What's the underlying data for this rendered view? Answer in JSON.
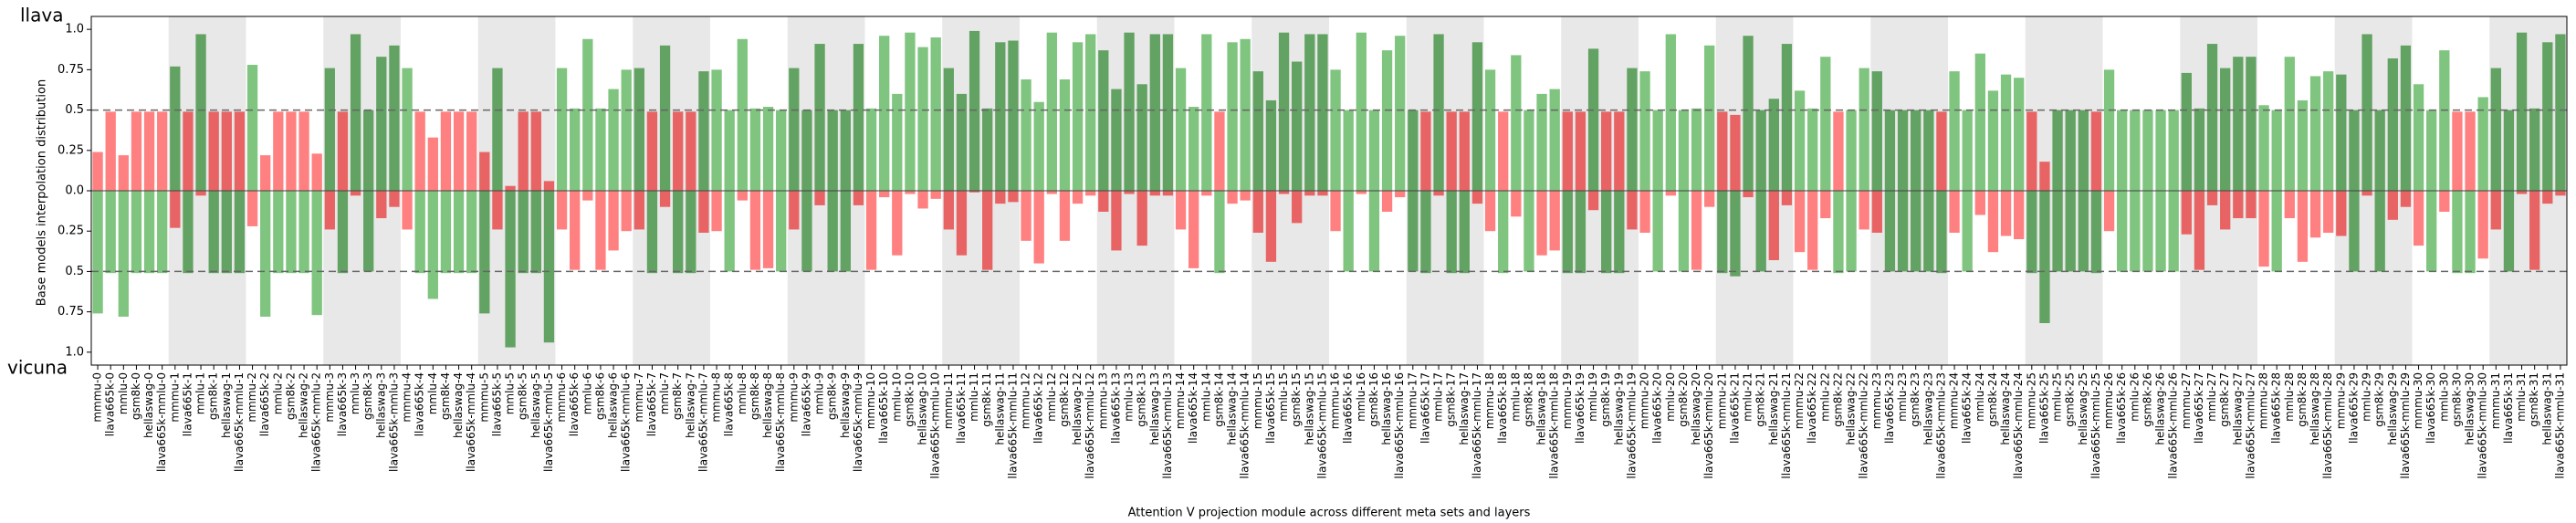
{
  "chart_data": {
    "type": "diverging_bar",
    "top_label": "llava",
    "bottom_label": "vicuna",
    "ylabel": "Base models interpolation distribution",
    "xlabel": "Attention V projection module across different meta sets and layers",
    "ylim": [
      -1.08,
      1.08
    ],
    "yticks": [
      {
        "value": 1,
        "label": "1.0"
      },
      0.75,
      0.5,
      0.25,
      {
        "value": 0,
        "label": "0.0"
      },
      {
        "value": -0.25,
        "label": "0.25"
      },
      {
        "value": -0.5,
        "label": "0.5"
      },
      {
        "value": -0.75,
        "label": "0.75"
      },
      {
        "value": -1,
        "label": "1.0"
      }
    ],
    "reference_lines": [
      0.5,
      -0.5
    ],
    "colors": {
      "high": "#7fc47f",
      "low": "#ff8080",
      "high_dark": "#62a262",
      "low_dark": "#e86464",
      "shade": "#e8e8e8"
    },
    "categories": [
      "mmmu-0",
      "llava665k-0",
      "mmlu-0",
      "gsm8k-0",
      "hellaswag-0",
      "llava665k-mmlu-0",
      "mmmu-1",
      "llava665k-1",
      "mmlu-1",
      "gsm8k-1",
      "hellaswag-1",
      "llava665k-mmlu-1",
      "mmmu-2",
      "llava665k-2",
      "mmlu-2",
      "gsm8k-2",
      "hellaswag-2",
      "llava665k-mmlu-2",
      "mmmu-3",
      "llava665k-3",
      "mmlu-3",
      "gsm8k-3",
      "hellaswag-3",
      "llava665k-mmlu-3",
      "mmmu-4",
      "llava665k-4",
      "mmlu-4",
      "gsm8k-4",
      "hellaswag-4",
      "llava665k-mmlu-4",
      "mmmu-5",
      "llava665k-5",
      "mmlu-5",
      "gsm8k-5",
      "hellaswag-5",
      "llava665k-mmlu-5",
      "mmmu-6",
      "llava665k-6",
      "mmlu-6",
      "gsm8k-6",
      "hellaswag-6",
      "llava665k-mmlu-6",
      "mmmu-7",
      "llava665k-7",
      "mmlu-7",
      "gsm8k-7",
      "hellaswag-7",
      "llava665k-mmlu-7",
      "mmmu-8",
      "llava665k-8",
      "mmlu-8",
      "gsm8k-8",
      "hellaswag-8",
      "llava665k-mmlu-8",
      "mmmu-9",
      "llava665k-9",
      "mmlu-9",
      "gsm8k-9",
      "hellaswag-9",
      "llava665k-mmlu-9",
      "mmmu-10",
      "llava665k-10",
      "mmlu-10",
      "gsm8k-10",
      "hellaswag-10",
      "llava665k-mmlu-10",
      "mmmu-11",
      "llava665k-11",
      "mmlu-11",
      "gsm8k-11",
      "hellaswag-11",
      "llava665k-mmlu-11",
      "mmmu-12",
      "llava665k-12",
      "mmlu-12",
      "gsm8k-12",
      "hellaswag-12",
      "llava665k-mmlu-12",
      "mmmu-13",
      "llava665k-13",
      "mmlu-13",
      "gsm8k-13",
      "hellaswag-13",
      "llava665k-mmlu-13",
      "mmmu-14",
      "llava665k-14",
      "mmlu-14",
      "gsm8k-14",
      "hellaswag-14",
      "llava665k-mmlu-14",
      "mmmu-15",
      "llava665k-15",
      "mmlu-15",
      "gsm8k-15",
      "hellaswag-15",
      "llava665k-mmlu-15",
      "mmmu-16",
      "llava665k-16",
      "mmlu-16",
      "gsm8k-16",
      "hellaswag-16",
      "llava665k-mmlu-16",
      "mmmu-17",
      "llava665k-17",
      "mmlu-17",
      "gsm8k-17",
      "hellaswag-17",
      "llava665k-mmlu-17",
      "mmmu-18",
      "llava665k-18",
      "mmlu-18",
      "gsm8k-18",
      "hellaswag-18",
      "llava665k-mmlu-18",
      "mmmu-19",
      "llava665k-19",
      "mmlu-19",
      "gsm8k-19",
      "hellaswag-19",
      "llava665k-mmlu-19",
      "mmmu-20",
      "llava665k-20",
      "mmlu-20",
      "gsm8k-20",
      "hellaswag-20",
      "llava665k-mmlu-20",
      "mmmu-21",
      "llava665k-21",
      "mmlu-21",
      "gsm8k-21",
      "hellaswag-21",
      "llava665k-mmlu-21",
      "mmmu-22",
      "llava665k-22",
      "mmlu-22",
      "gsm8k-22",
      "hellaswag-22",
      "llava665k-mmlu-22",
      "mmmu-23",
      "llava665k-23",
      "mmlu-23",
      "gsm8k-23",
      "hellaswag-23",
      "llava665k-mmlu-23",
      "mmmu-24",
      "llava665k-24",
      "mmlu-24",
      "gsm8k-24",
      "hellaswag-24",
      "llava665k-mmlu-24",
      "mmmu-25",
      "llava665k-25",
      "mmlu-25",
      "gsm8k-25",
      "hellaswag-25",
      "llava665k-mmlu-25",
      "mmmu-26",
      "llava665k-26",
      "mmlu-26",
      "gsm8k-26",
      "hellaswag-26",
      "llava665k-mmlu-26",
      "mmmu-27",
      "llava665k-27",
      "mmlu-27",
      "gsm8k-27",
      "hellaswag-27",
      "llava665k-mmlu-27",
      "mmmu-28",
      "llava665k-28",
      "mmlu-28",
      "gsm8k-28",
      "hellaswag-28",
      "llava665k-mmlu-28",
      "mmmu-29",
      "llava665k-29",
      "mmlu-29",
      "gsm8k-29",
      "hellaswag-29",
      "llava665k-mmlu-29",
      "mmmu-30",
      "llava665k-30",
      "mmlu-30",
      "gsm8k-30",
      "hellaswag-30",
      "llava665k-mmlu-30",
      "mmmu-31",
      "llava665k-31",
      "mmlu-31",
      "gsm8k-31",
      "hellaswag-31",
      "llava665k-mmlu-31"
    ],
    "series": [
      {
        "name": "llava",
        "direction": "up",
        "values": [
          0.24,
          0.49,
          0.22,
          0.49,
          0.49,
          0.49,
          0.77,
          0.49,
          0.97,
          0.49,
          0.49,
          0.49,
          0.78,
          0.22,
          0.49,
          0.49,
          0.49,
          0.23,
          0.76,
          0.49,
          0.97,
          0.5,
          0.83,
          0.9,
          0.76,
          0.49,
          0.33,
          0.49,
          0.49,
          0.49,
          0.24,
          0.76,
          0.03,
          0.49,
          0.49,
          0.06,
          0.76,
          0.51,
          0.94,
          0.51,
          0.63,
          0.75,
          0.76,
          0.49,
          0.9,
          0.49,
          0.49,
          0.74,
          0.75,
          0.5,
          0.94,
          0.51,
          0.52,
          0.5,
          0.76,
          0.5,
          0.91,
          0.5,
          0.5,
          0.91,
          0.51,
          0.96,
          0.6,
          0.98,
          0.89,
          0.95,
          0.76,
          0.6,
          0.99,
          0.51,
          0.92,
          0.93,
          0.69,
          0.55,
          0.98,
          0.69,
          0.92,
          0.97,
          0.87,
          0.63,
          0.98,
          0.66,
          0.97,
          0.97,
          0.76,
          0.52,
          0.97,
          0.49,
          0.92,
          0.94,
          0.74,
          0.56,
          0.98,
          0.8,
          0.97,
          0.97,
          0.75,
          0.5,
          0.98,
          0.5,
          0.87,
          0.96,
          0.5,
          0.49,
          0.97,
          0.49,
          0.49,
          0.92,
          0.75,
          0.49,
          0.84,
          0.5,
          0.6,
          0.63,
          0.49,
          0.49,
          0.88,
          0.49,
          0.49,
          0.76,
          0.74,
          0.5,
          0.97,
          0.5,
          0.51,
          0.9,
          0.49,
          0.47,
          0.96,
          0.5,
          0.57,
          0.91,
          0.62,
          0.51,
          0.83,
          0.49,
          0.5,
          0.76,
          0.74,
          0.5,
          0.5,
          0.5,
          0.5,
          0.49,
          0.74,
          0.5,
          0.85,
          0.62,
          0.72,
          0.7,
          0.49,
          0.18,
          0.5,
          0.5,
          0.5,
          0.49,
          0.75,
          0.5,
          0.5,
          0.5,
          0.5,
          0.5,
          0.73,
          0.51,
          0.91,
          0.76,
          0.83,
          0.83,
          0.53,
          0.5,
          0.83,
          0.56,
          0.71,
          0.74,
          0.72,
          0.5,
          0.97,
          0.5,
          0.82,
          0.9,
          0.66,
          0.5,
          0.87,
          0.49,
          0.49,
          0.58,
          0.76,
          0.5,
          0.98,
          0.51,
          0.92,
          0.97
        ]
      },
      {
        "name": "vicuna",
        "direction": "down",
        "values": [
          0.76,
          0.51,
          0.78,
          0.51,
          0.51,
          0.51,
          0.23,
          0.51,
          0.03,
          0.51,
          0.51,
          0.51,
          0.22,
          0.78,
          0.51,
          0.51,
          0.51,
          0.77,
          0.24,
          0.51,
          0.03,
          0.5,
          0.17,
          0.1,
          0.24,
          0.51,
          0.67,
          0.51,
          0.51,
          0.51,
          0.76,
          0.24,
          0.97,
          0.51,
          0.51,
          0.94,
          0.24,
          0.49,
          0.06,
          0.49,
          0.37,
          0.25,
          0.24,
          0.51,
          0.1,
          0.51,
          0.51,
          0.26,
          0.25,
          0.5,
          0.06,
          0.49,
          0.48,
          0.5,
          0.24,
          0.5,
          0.09,
          0.5,
          0.5,
          0.09,
          0.49,
          0.04,
          0.4,
          0.02,
          0.11,
          0.05,
          0.24,
          0.4,
          0.01,
          0.49,
          0.08,
          0.07,
          0.31,
          0.45,
          0.02,
          0.31,
          0.08,
          0.03,
          0.13,
          0.37,
          0.02,
          0.34,
          0.03,
          0.03,
          0.24,
          0.48,
          0.03,
          0.51,
          0.08,
          0.06,
          0.26,
          0.44,
          0.02,
          0.2,
          0.03,
          0.03,
          0.25,
          0.5,
          0.02,
          0.5,
          0.13,
          0.04,
          0.5,
          0.51,
          0.03,
          0.51,
          0.51,
          0.08,
          0.25,
          0.51,
          0.16,
          0.5,
          0.4,
          0.37,
          0.51,
          0.51,
          0.12,
          0.51,
          0.51,
          0.24,
          0.26,
          0.5,
          0.03,
          0.5,
          0.49,
          0.1,
          0.51,
          0.53,
          0.04,
          0.5,
          0.43,
          0.09,
          0.38,
          0.49,
          0.17,
          0.51,
          0.5,
          0.24,
          0.26,
          0.5,
          0.5,
          0.5,
          0.5,
          0.51,
          0.26,
          0.5,
          0.15,
          0.38,
          0.28,
          0.3,
          0.51,
          0.82,
          0.5,
          0.5,
          0.5,
          0.51,
          0.25,
          0.5,
          0.5,
          0.5,
          0.5,
          0.5,
          0.27,
          0.49,
          0.09,
          0.24,
          0.17,
          0.17,
          0.47,
          0.5,
          0.17,
          0.44,
          0.29,
          0.26,
          0.28,
          0.5,
          0.03,
          0.5,
          0.18,
          0.1,
          0.34,
          0.5,
          0.13,
          0.51,
          0.51,
          0.42,
          0.24,
          0.5,
          0.02,
          0.49,
          0.08,
          0.03
        ]
      }
    ]
  }
}
